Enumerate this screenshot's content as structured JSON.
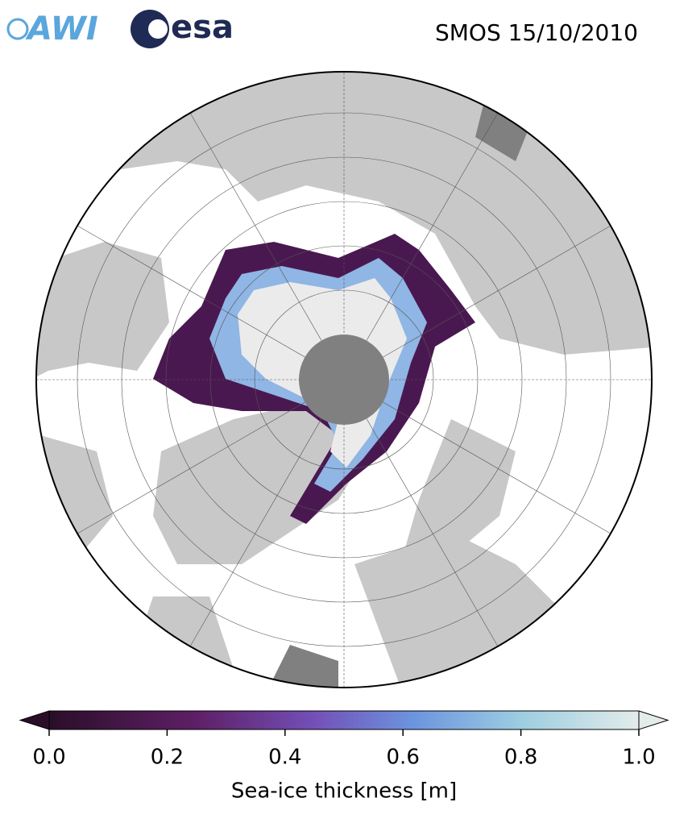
{
  "header": {
    "logos": [
      "AWI",
      "esa"
    ],
    "title": "SMOS 15/10/2010"
  },
  "colorbar": {
    "label": "Sea-ice thickness [m]",
    "lim": [
      0,
      1
    ],
    "ticks": [
      {
        "value": 0,
        "label": "0.0"
      },
      {
        "value": 0.2,
        "label": "0.2"
      },
      {
        "value": 0.4,
        "label": "0.4"
      },
      {
        "value": 0.6,
        "label": "0.6"
      },
      {
        "value": 0.8,
        "label": "0.8"
      },
      {
        "value": 1,
        "label": "1.0"
      }
    ]
  }
}
